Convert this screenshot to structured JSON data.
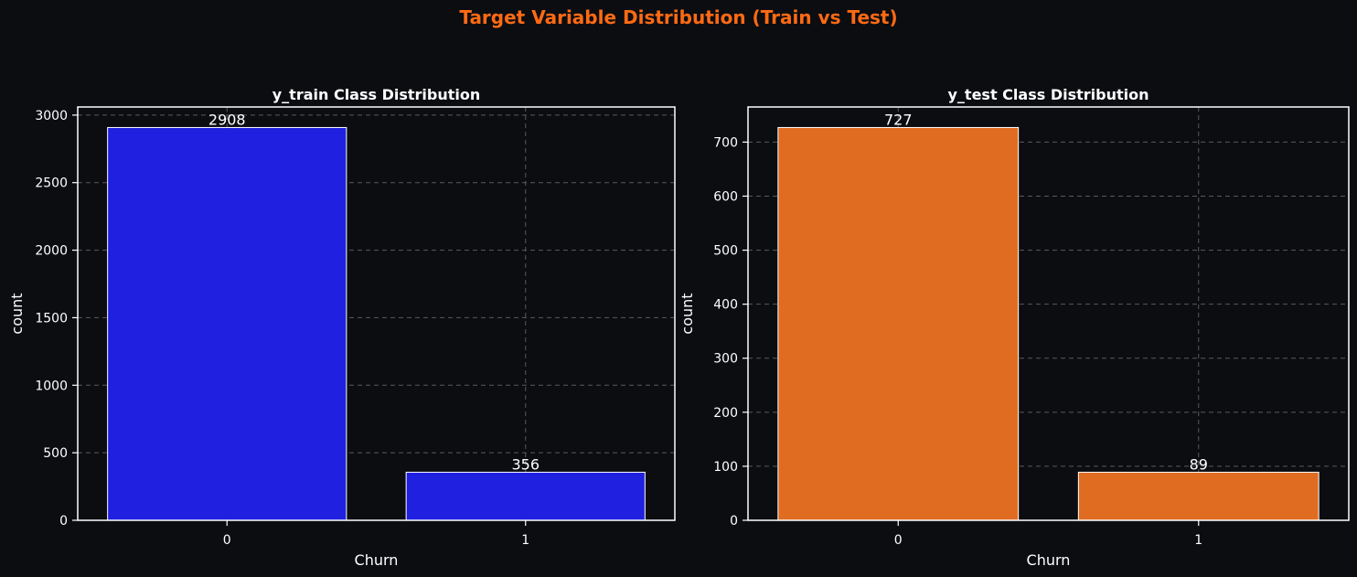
{
  "figure": {
    "suptitle": "Target Variable Distribution (Train vs Test)",
    "background": "#0b0d11",
    "title_color": "#ff6a13",
    "text_color": "#ffffff",
    "grid_color": "#5a5a5a"
  },
  "chart_data": [
    {
      "type": "bar",
      "title": "y_train Class Distribution",
      "xlabel": "Churn",
      "ylabel": "count",
      "categories": [
        "0",
        "1"
      ],
      "values": [
        2908,
        356
      ],
      "data_labels": [
        "2908",
        "356"
      ],
      "ylim": [
        0,
        3060
      ],
      "yticks": [
        0,
        500,
        1000,
        1500,
        2000,
        2500,
        3000
      ],
      "bar_color": "#2020e0",
      "grid": true
    },
    {
      "type": "bar",
      "title": "y_test Class Distribution",
      "xlabel": "Churn",
      "ylabel": "count",
      "categories": [
        "0",
        "1"
      ],
      "values": [
        727,
        89
      ],
      "data_labels": [
        "727",
        "89"
      ],
      "ylim": [
        0,
        765
      ],
      "yticks": [
        0,
        100,
        200,
        300,
        400,
        500,
        600,
        700
      ],
      "bar_color": "#e06c22",
      "grid": true
    }
  ]
}
